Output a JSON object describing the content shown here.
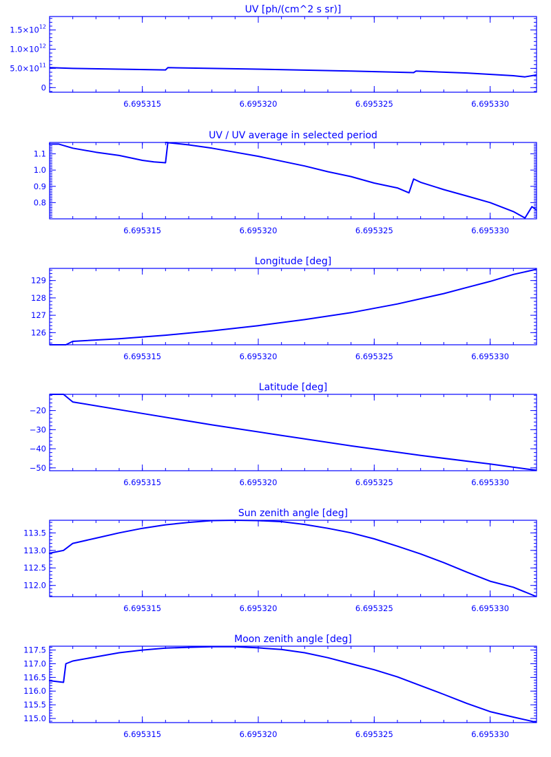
{
  "colors": {
    "axis": "#0000ff",
    "line": "#0000ff",
    "background": "#ffffff"
  },
  "chart_data": [
    {
      "type": "line",
      "title": "UV [ph/(cm^2 s sr)]",
      "xlim": [
        6.695311,
        6.695332
      ],
      "ylim": [
        -120000000000.0,
        1850000000000.0
      ],
      "x_ticks": [
        6.695315,
        6.69532,
        6.695325,
        6.69533
      ],
      "x_tick_labels": [
        "6.695315",
        "6.695320",
        "6.695325",
        "6.695330"
      ],
      "y_ticks": [
        0,
        500000000000.0,
        1000000000000.0,
        1500000000000.0
      ],
      "y_tick_labels": [
        {
          "mantissa": "0",
          "exp": ""
        },
        {
          "mantissa": "5.0×10",
          "exp": "11"
        },
        {
          "mantissa": "1.0×10",
          "exp": "12"
        },
        {
          "mantissa": "1.5×10",
          "exp": "12"
        }
      ],
      "y_minor_per_major": 5,
      "x": [
        6.695311,
        6.695312,
        6.695314,
        6.695316,
        6.6953161,
        6.69532,
        6.695324,
        6.6953267,
        6.6953268,
        6.695329,
        6.695331,
        6.6953315,
        6.695332
      ],
      "y": [
        520000000000.0,
        500000000000.0,
        480000000000.0,
        460000000000.0,
        520000000000.0,
        480000000000.0,
        430000000000.0,
        390000000000.0,
        430000000000.0,
        380000000000.0,
        310000000000.0,
        280000000000.0,
        330000000000.0
      ]
    },
    {
      "type": "line",
      "title": "UV / UV average in selected period",
      "xlim": [
        6.695311,
        6.695332
      ],
      "ylim": [
        0.7,
        1.17
      ],
      "x_ticks": [
        6.695315,
        6.69532,
        6.695325,
        6.69533
      ],
      "x_tick_labels": [
        "6.695315",
        "6.695320",
        "6.695325",
        "6.695330"
      ],
      "y_ticks": [
        0.8,
        0.9,
        1.0,
        1.1
      ],
      "y_tick_labels": [
        {
          "mantissa": "0.8",
          "exp": ""
        },
        {
          "mantissa": "0.9",
          "exp": ""
        },
        {
          "mantissa": "1.0",
          "exp": ""
        },
        {
          "mantissa": "1.1",
          "exp": ""
        }
      ],
      "y_minor_per_major": 10,
      "x": [
        6.695311,
        6.695311,
        6.6953114,
        6.695312,
        6.695313,
        6.695314,
        6.695315,
        6.6953155,
        6.695316,
        6.6953161,
        6.695316,
        6.695317,
        6.695318,
        6.695319,
        6.69532,
        6.695321,
        6.695322,
        6.695323,
        6.695324,
        6.695325,
        6.695326,
        6.6953265,
        6.6953267,
        6.695327,
        6.695328,
        6.695329,
        6.69533,
        6.695331,
        6.6953315,
        6.6953318,
        6.695332
      ],
      "y": [
        1.165,
        1.16,
        1.16,
        1.135,
        1.11,
        1.09,
        1.06,
        1.05,
        1.045,
        1.17,
        1.17,
        1.155,
        1.135,
        1.11,
        1.085,
        1.055,
        1.025,
        0.99,
        0.96,
        0.92,
        0.89,
        0.86,
        0.945,
        0.925,
        0.88,
        0.84,
        0.8,
        0.745,
        0.705,
        0.775,
        0.755
      ]
    },
    {
      "type": "line",
      "title": "Longitude [deg]",
      "xlim": [
        6.695311,
        6.695332
      ],
      "ylim": [
        125.3,
        129.7
      ],
      "x_ticks": [
        6.695315,
        6.69532,
        6.695325,
        6.69533
      ],
      "x_tick_labels": [
        "6.695315",
        "6.695320",
        "6.695325",
        "6.695330"
      ],
      "y_ticks": [
        126,
        127,
        128,
        129
      ],
      "y_tick_labels": [
        {
          "mantissa": "126",
          "exp": ""
        },
        {
          "mantissa": "127",
          "exp": ""
        },
        {
          "mantissa": "128",
          "exp": ""
        },
        {
          "mantissa": "129",
          "exp": ""
        }
      ],
      "y_minor_per_major": 5,
      "x": [
        6.695311,
        6.6953117,
        6.695312,
        6.695314,
        6.695316,
        6.695318,
        6.69532,
        6.695322,
        6.695324,
        6.695326,
        6.695328,
        6.695329,
        6.69533,
        6.695331,
        6.695332
      ],
      "y": [
        125.3,
        125.3,
        125.5,
        125.65,
        125.85,
        126.1,
        126.4,
        126.75,
        127.15,
        127.65,
        128.25,
        128.6,
        128.95,
        129.35,
        129.65
      ]
    },
    {
      "type": "line",
      "title": "Latitude [deg]",
      "xlim": [
        6.695311,
        6.695332
      ],
      "ylim": [
        -51.5,
        -11.5
      ],
      "x_ticks": [
        6.695315,
        6.69532,
        6.695325,
        6.69533
      ],
      "x_tick_labels": [
        "6.695315",
        "6.695320",
        "6.695325",
        "6.695330"
      ],
      "y_ticks": [
        -50,
        -40,
        -30,
        -20
      ],
      "y_tick_labels": [
        {
          "mantissa": "−50",
          "exp": ""
        },
        {
          "mantissa": "−40",
          "exp": ""
        },
        {
          "mantissa": "−30",
          "exp": ""
        },
        {
          "mantissa": "−20",
          "exp": ""
        }
      ],
      "y_minor_per_major": 5,
      "x": [
        6.695311,
        6.6953116,
        6.695312,
        6.695315,
        6.695318,
        6.695321,
        6.695324,
        6.695327,
        6.69533,
        6.695332
      ],
      "y": [
        -11.5,
        -11.5,
        -15.5,
        -21.5,
        -27.5,
        -33,
        -38.5,
        -43.5,
        -48,
        -51.3
      ]
    },
    {
      "type": "line",
      "title": "Sun zenith angle [deg]",
      "xlim": [
        6.695311,
        6.695332
      ],
      "ylim": [
        111.68,
        113.86
      ],
      "x_ticks": [
        6.695315,
        6.69532,
        6.695325,
        6.69533
      ],
      "x_tick_labels": [
        "6.695315",
        "6.695320",
        "6.695325",
        "6.695330"
      ],
      "y_ticks": [
        112.0,
        112.5,
        113.0,
        113.5
      ],
      "y_tick_labels": [
        {
          "mantissa": "112.0",
          "exp": ""
        },
        {
          "mantissa": "112.5",
          "exp": ""
        },
        {
          "mantissa": "113.0",
          "exp": ""
        },
        {
          "mantissa": "113.5",
          "exp": ""
        }
      ],
      "y_minor_per_major": 5,
      "x": [
        6.695311,
        6.695311,
        6.6953116,
        6.695312,
        6.695313,
        6.695314,
        6.695315,
        6.695316,
        6.695317,
        6.695318,
        6.695319,
        6.69532,
        6.695321,
        6.695322,
        6.695323,
        6.695324,
        6.695325,
        6.695326,
        6.695327,
        6.695328,
        6.695329,
        6.69533,
        6.695331,
        6.695332
      ],
      "y": [
        112.9,
        112.92,
        113.0,
        113.2,
        113.35,
        113.5,
        113.63,
        113.73,
        113.8,
        113.85,
        113.86,
        113.85,
        113.82,
        113.74,
        113.63,
        113.5,
        113.33,
        113.12,
        112.9,
        112.65,
        112.38,
        112.12,
        111.95,
        111.68
      ]
    },
    {
      "type": "line",
      "title": "Moon zenith angle [deg]",
      "xlim": [
        6.695311,
        6.695332
      ],
      "ylim": [
        114.85,
        117.64
      ],
      "x_ticks": [
        6.695315,
        6.69532,
        6.695325,
        6.69533
      ],
      "x_tick_labels": [
        "6.695315",
        "6.695320",
        "6.695325",
        "6.695330"
      ],
      "y_ticks": [
        115.0,
        115.5,
        116.0,
        116.5,
        117.0,
        117.5
      ],
      "y_tick_labels": [
        {
          "mantissa": "115.0",
          "exp": ""
        },
        {
          "mantissa": "115.5",
          "exp": ""
        },
        {
          "mantissa": "116.0",
          "exp": ""
        },
        {
          "mantissa": "116.5",
          "exp": ""
        },
        {
          "mantissa": "117.0",
          "exp": ""
        },
        {
          "mantissa": "117.5",
          "exp": ""
        }
      ],
      "y_minor_per_major": 5,
      "x": [
        6.695311,
        6.695311,
        6.695311,
        6.6953116,
        6.6953117,
        6.695312,
        6.695313,
        6.695314,
        6.695315,
        6.695316,
        6.695317,
        6.695318,
        6.695319,
        6.69532,
        6.695321,
        6.695322,
        6.695323,
        6.695324,
        6.695325,
        6.695326,
        6.695327,
        6.695328,
        6.695329,
        6.69533,
        6.695331,
        6.695332
      ],
      "y": [
        116.4,
        116.38,
        116.38,
        116.32,
        117.0,
        117.1,
        117.25,
        117.4,
        117.5,
        117.57,
        117.6,
        117.62,
        117.62,
        117.58,
        117.52,
        117.4,
        117.22,
        117.0,
        116.78,
        116.52,
        116.2,
        115.88,
        115.55,
        115.25,
        115.05,
        114.86
      ]
    }
  ]
}
